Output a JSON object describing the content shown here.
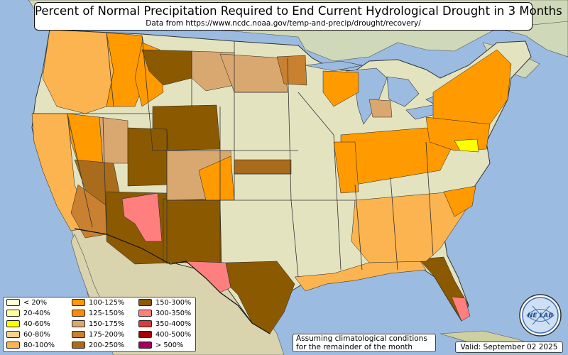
{
  "title": "Percent of Normal Precipitation Required to End Current Hydrological Drought in 3 Months",
  "subtitle": "Data from https://www.ncdc.noaa.gov/temp-and-precip/drought/recovery/",
  "legend": [
    {
      "label": "< 20%",
      "color": "#ffffd8"
    },
    {
      "label": "20-40%",
      "color": "#ffff9e"
    },
    {
      "label": "40-60%",
      "color": "#ffff00"
    },
    {
      "label": "60-80%",
      "color": "#fdd28a"
    },
    {
      "label": "80-100%",
      "color": "#fbb44f"
    },
    {
      "label": "100-125%",
      "color": "#ff9a00"
    },
    {
      "label": "125-150%",
      "color": "#ff8c00"
    },
    {
      "label": "150-175%",
      "color": "#d9a870"
    },
    {
      "label": "175-200%",
      "color": "#c98030"
    },
    {
      "label": "200-250%",
      "color": "#a86c1c"
    },
    {
      "label": "150-300%",
      "color": "#8b5a00"
    },
    {
      "label": "300-350%",
      "color": "#ff7f7f"
    },
    {
      "label": "350-400%",
      "color": "#d83b3b"
    },
    {
      "label": "400-500%",
      "color": "#a80000"
    },
    {
      "label": "> 500%",
      "color": "#a0005a"
    }
  ],
  "note": [
    "Assuming climatological conditions",
    "for the remainder of the month"
  ],
  "valid": "Valid: September 02 2025",
  "logo_text": "NE LAB",
  "colors": {
    "ocean": "#9bbbe0",
    "land": "#e3e3c0",
    "canada": "#d8dcc0",
    "mexico": "#d8cfa8"
  }
}
